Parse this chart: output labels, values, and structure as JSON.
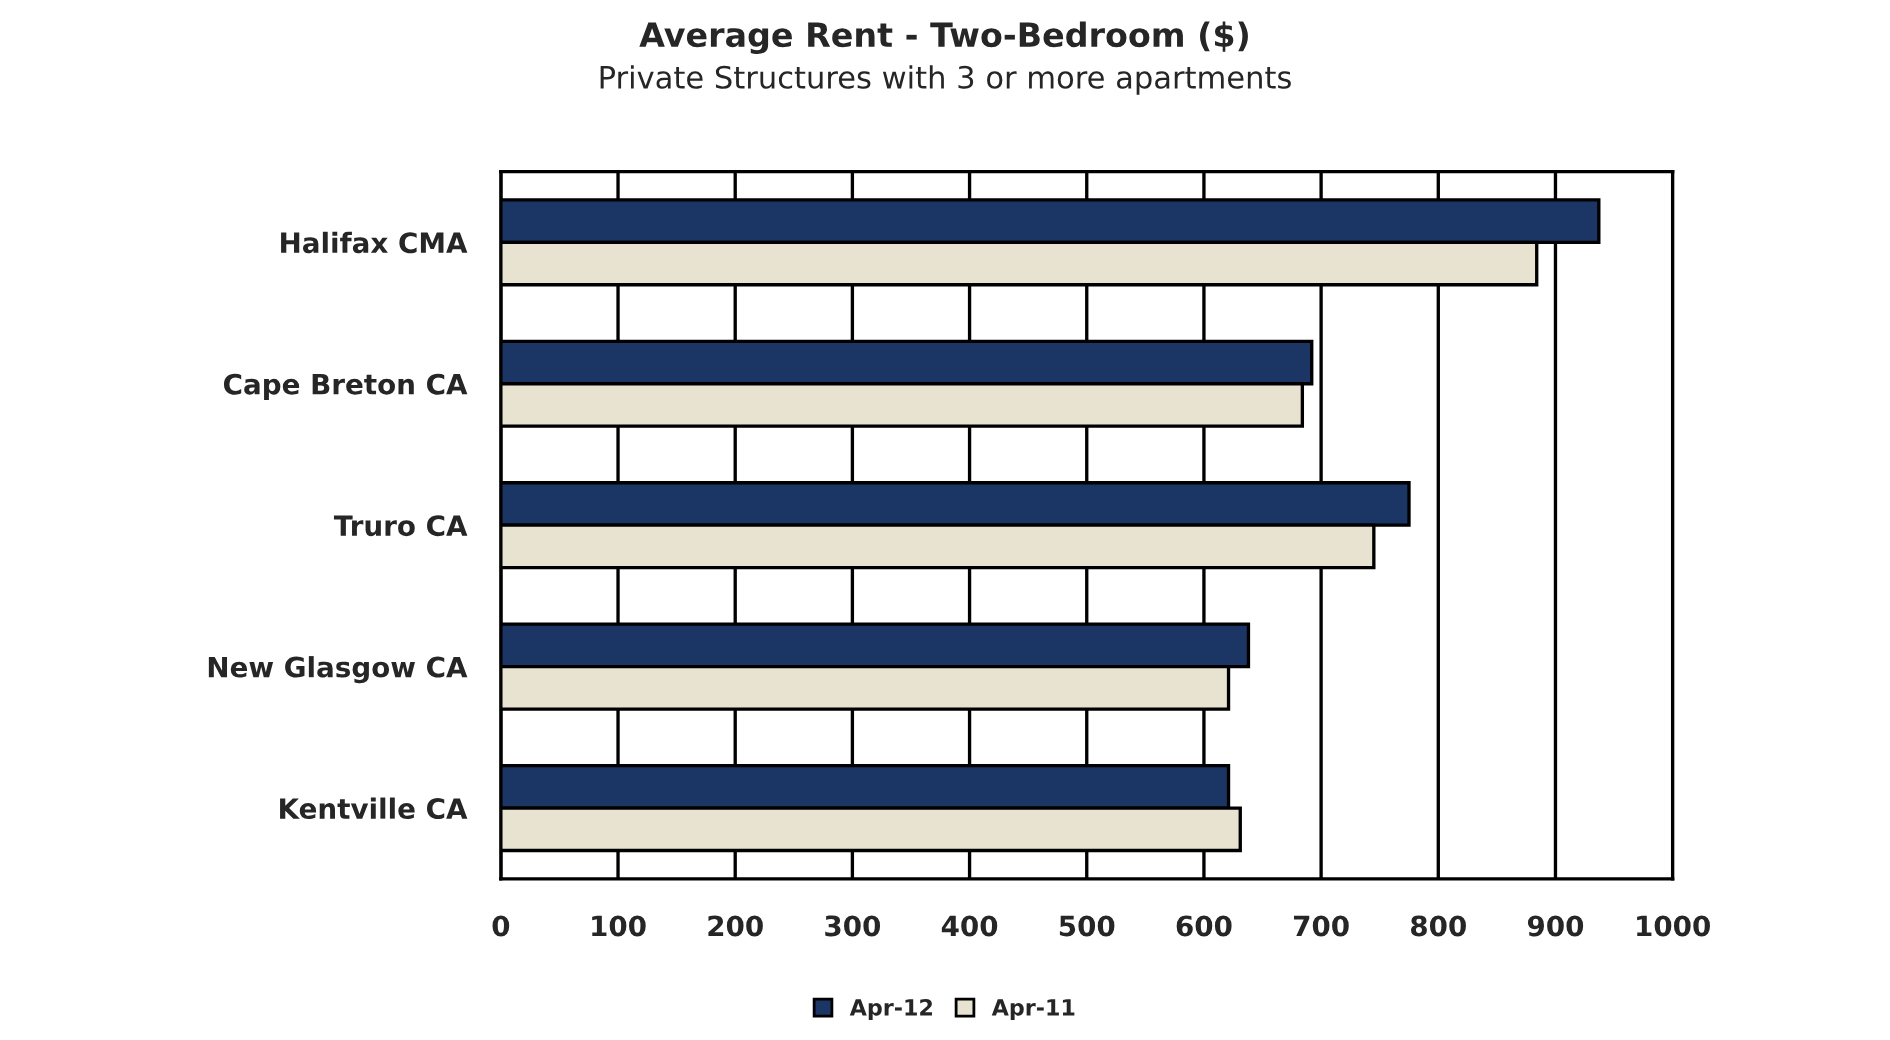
{
  "chart_data": {
    "type": "bar",
    "orientation": "horizontal",
    "title": "Average Rent - Two-Bedroom ($)",
    "subtitle": "Private Structures with 3 or more apartments",
    "categories": [
      "Halifax CMA",
      "Cape Breton CA",
      "Truro CA",
      "New Glasgow CA",
      "Kentville CA"
    ],
    "series": [
      {
        "name": "Apr-12",
        "color": "#1b3564",
        "values": [
          937,
          692,
          775,
          638,
          621
        ]
      },
      {
        "name": "Apr-11",
        "color": "#e8e3d0",
        "values": [
          884,
          684,
          745,
          621,
          631
        ]
      }
    ],
    "xlim": [
      0,
      1000
    ],
    "xticks": [
      0,
      100,
      200,
      300,
      400,
      500,
      600,
      700,
      800,
      900,
      1000
    ],
    "grid": "x",
    "legend": "bottom"
  }
}
